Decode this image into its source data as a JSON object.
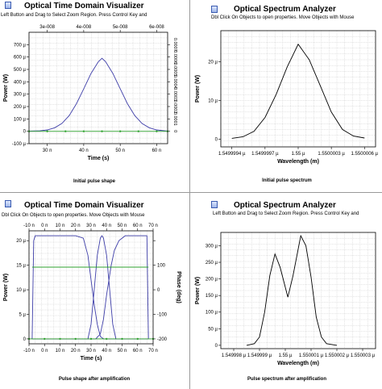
{
  "panels": [
    {
      "title": "Optical Time Domain Visualizer",
      "hint": "Left Button and Drag to Select Zoom Region. Press Control Key and",
      "caption": "Initial pulse shape"
    },
    {
      "title": "Optical Spectrum Analyzer",
      "hint": "Dbl Click On Objects to open properties.  Move Objects with Mouse",
      "caption": "Initial pulse spectrum"
    },
    {
      "title": "Optical Time Domain Visualizer",
      "hint": "Dbl Click On Objects to open properties.  Move Objects with Mouse",
      "caption": "Pulse shape after amplification"
    },
    {
      "title": "Optical Spectrum Analyzer",
      "hint": "Left Button and Drag to Select Zoom Region. Press Control Key and",
      "caption": "Pulse spectrum after amplification"
    }
  ],
  "colors": {
    "power": "#3d3da8",
    "phase": "#2ea12e",
    "spectrum": "#000000",
    "grid": "#c8c8c8"
  },
  "chart_data": [
    {
      "type": "line",
      "xlabel": "Time (s)",
      "ylabel": "Power (W)",
      "xlim": [
        25,
        63
      ],
      "ylim": [
        -100,
        800
      ],
      "x_ticks": [
        30,
        40,
        50,
        60
      ],
      "x_tick_labels": [
        "30 n",
        "40 n",
        "50 n",
        "60 n"
      ],
      "y_ticks": [
        -100,
        0,
        100,
        200,
        300,
        400,
        500,
        600,
        700
      ],
      "y_tick_labels": [
        "-100 µ",
        "0",
        "100 µ",
        "200 µ",
        "300 µ",
        "400 µ",
        "500 µ",
        "600 µ",
        "700 µ"
      ],
      "top_ticks": [
        30,
        40,
        50,
        60
      ],
      "top_tick_labels": [
        "3e-008",
        "4e-008",
        "5e-008",
        "6e-008"
      ],
      "right_ticks": [
        0,
        100,
        200,
        300,
        400,
        500,
        600,
        700
      ],
      "right_tick_labels": [
        "0",
        "0.0001",
        "0.0002",
        "0.0003",
        "0.0004",
        "0.0005",
        "0.0006",
        "0.0007"
      ],
      "series": [
        {
          "color": "power",
          "x": [
            25,
            28,
            30,
            32,
            34,
            36,
            38,
            40,
            42,
            44,
            45,
            46,
            48,
            50,
            52,
            54,
            56,
            58,
            60,
            63
          ],
          "y": [
            1,
            4,
            11,
            28,
            63,
            126,
            222,
            343,
            467,
            562,
            590,
            562,
            467,
            343,
            222,
            126,
            63,
            28,
            11,
            1
          ]
        },
        {
          "color": "phase",
          "markers": true,
          "x": [
            25,
            30,
            35,
            40,
            45,
            50,
            55,
            60,
            63
          ],
          "y": [
            0,
            0,
            0,
            0,
            0,
            0,
            0,
            0,
            0
          ]
        }
      ]
    },
    {
      "type": "line",
      "xlabel": "Wavelength (m)",
      "ylabel": "Power (W)",
      "xlim": [
        1.5499993,
        1.5500007
      ],
      "ylim": [
        -2,
        28
      ],
      "x_ticks": [
        1.5499994,
        1.5499997,
        1.55,
        1.5500003,
        1.5500006
      ],
      "x_tick_labels": [
        "1.5499994 µ",
        "1.5499997 µ",
        "1.55 µ",
        "1.5500003 µ",
        "1.5500006 µ"
      ],
      "y_ticks": [
        0,
        10,
        20
      ],
      "y_tick_labels": [
        "0",
        "10 µ",
        "20 µ"
      ],
      "series": [
        {
          "color": "spectrum",
          "x": [
            1.5499994,
            1.5499995,
            1.5499996,
            1.5499997,
            1.5499998,
            1.5499999,
            1.55,
            1.5500001,
            1.5500002,
            1.5500003,
            1.5500004,
            1.5500005,
            1.5500006
          ],
          "y": [
            0.2,
            0.6,
            2,
            5.6,
            11.5,
            18.6,
            24.5,
            20.5,
            13.8,
            7,
            2.5,
            0.8,
            0.3
          ]
        }
      ]
    },
    {
      "type": "line",
      "xlabel": "Time (s)",
      "ylabel": "Power (W)",
      "ylabel_right": "Phase (deg)",
      "xlim": [
        -10,
        70
      ],
      "ylim": [
        -1,
        22
      ],
      "x_ticks": [
        -10,
        0,
        10,
        20,
        30,
        40,
        50,
        60,
        70
      ],
      "x_tick_labels": [
        "-10 n",
        "0 n",
        "10 n",
        "20 n",
        "30 n",
        "40 n",
        "50 n",
        "60 n",
        "70 n"
      ],
      "y_ticks": [
        0,
        5,
        10,
        15,
        20
      ],
      "y_tick_labels": [
        "0",
        "5 µ",
        "10 µ",
        "15 µ",
        "20 µ"
      ],
      "top_ticks": [
        -10,
        0,
        10,
        20,
        30,
        40,
        50,
        60,
        70
      ],
      "top_tick_labels": [
        "-10 n",
        "0 n",
        "10 n",
        "20 n",
        "30 n",
        "40 n",
        "50 n",
        "60 n",
        "70 n"
      ],
      "right_ticks": [
        0,
        5,
        10,
        15,
        20
      ],
      "right_tick_labels": [
        "-200",
        "-100",
        "0",
        "100",
        ""
      ],
      "series": [
        {
          "color": "power",
          "x": [
            -8,
            -7,
            -6,
            0,
            10,
            20,
            25,
            28,
            30,
            32,
            34,
            36,
            38,
            40,
            45,
            50,
            58,
            60
          ],
          "y": [
            0,
            20,
            21,
            21,
            21,
            21,
            20.5,
            17,
            12,
            7,
            3,
            0.5,
            0,
            0,
            0,
            0,
            0,
            0
          ]
        },
        {
          "color": "power",
          "x": [
            -8,
            0,
            10,
            20,
            28,
            33,
            36,
            38,
            40,
            43,
            45,
            48,
            52,
            55,
            57,
            58,
            60,
            66,
            67
          ],
          "y": [
            0,
            0,
            0,
            0,
            0,
            0,
            1,
            4,
            9,
            15,
            18,
            20,
            21,
            21,
            21,
            21,
            21,
            21,
            0
          ]
        },
        {
          "color": "power",
          "x": [
            -8,
            -7,
            0,
            10,
            20,
            25,
            28,
            30,
            32,
            34,
            36,
            37,
            38,
            40,
            42,
            44,
            46,
            48,
            52,
            58,
            60,
            66,
            67
          ],
          "y": [
            0,
            0,
            0,
            0,
            0,
            0,
            0,
            3,
            10,
            17,
            20.5,
            21,
            20.5,
            17,
            10,
            3,
            0,
            0,
            0,
            0,
            0,
            0,
            0
          ]
        },
        {
          "color": "phase",
          "x": [
            -8,
            0,
            10,
            20,
            30,
            40,
            50,
            60,
            67
          ],
          "y": [
            14.6,
            14.6,
            14.6,
            14.6,
            14.6,
            14.6,
            14.6,
            14.6,
            14.6
          ]
        },
        {
          "color": "phase",
          "markers": true,
          "x": [
            -10,
            0,
            10,
            20,
            30,
            40,
            50,
            60,
            70
          ],
          "y": [
            0,
            0,
            0,
            0,
            0,
            0,
            0,
            0,
            0
          ]
        }
      ]
    },
    {
      "type": "line",
      "xlabel": "Wavelength (m)",
      "ylabel": "Power (W)",
      "xlim": [
        1.5499975,
        1.5500035
      ],
      "ylim": [
        -10,
        340
      ],
      "x_ticks": [
        1.549998,
        1.549999,
        1.55,
        1.550001,
        1.550002,
        1.550003
      ],
      "x_tick_labels": [
        "1.549998 µ",
        "1.549999 µ",
        "1.55 µ",
        "1.550001 µ",
        "1.550002 µ",
        "1.550003 µ"
      ],
      "y_ticks": [
        0,
        50,
        100,
        150,
        200,
        250,
        300
      ],
      "y_tick_labels": [
        "0",
        "50 µ",
        "100 µ",
        "150 µ",
        "200 µ",
        "250 µ",
        "300 µ"
      ],
      "series": [
        {
          "color": "spectrum",
          "x": [
            1.5499985,
            1.5499988,
            1.549999,
            1.5499992,
            1.5499994,
            1.5499996,
            1.5499998,
            1.5500001,
            1.5500003,
            1.5500006,
            1.5500008,
            1.550001,
            1.5500012,
            1.5500014,
            1.5500016,
            1.550002
          ],
          "y": [
            0,
            5,
            25,
            100,
            210,
            275,
            235,
            145,
            210,
            330,
            300,
            205,
            85,
            25,
            5,
            0
          ]
        }
      ]
    }
  ]
}
